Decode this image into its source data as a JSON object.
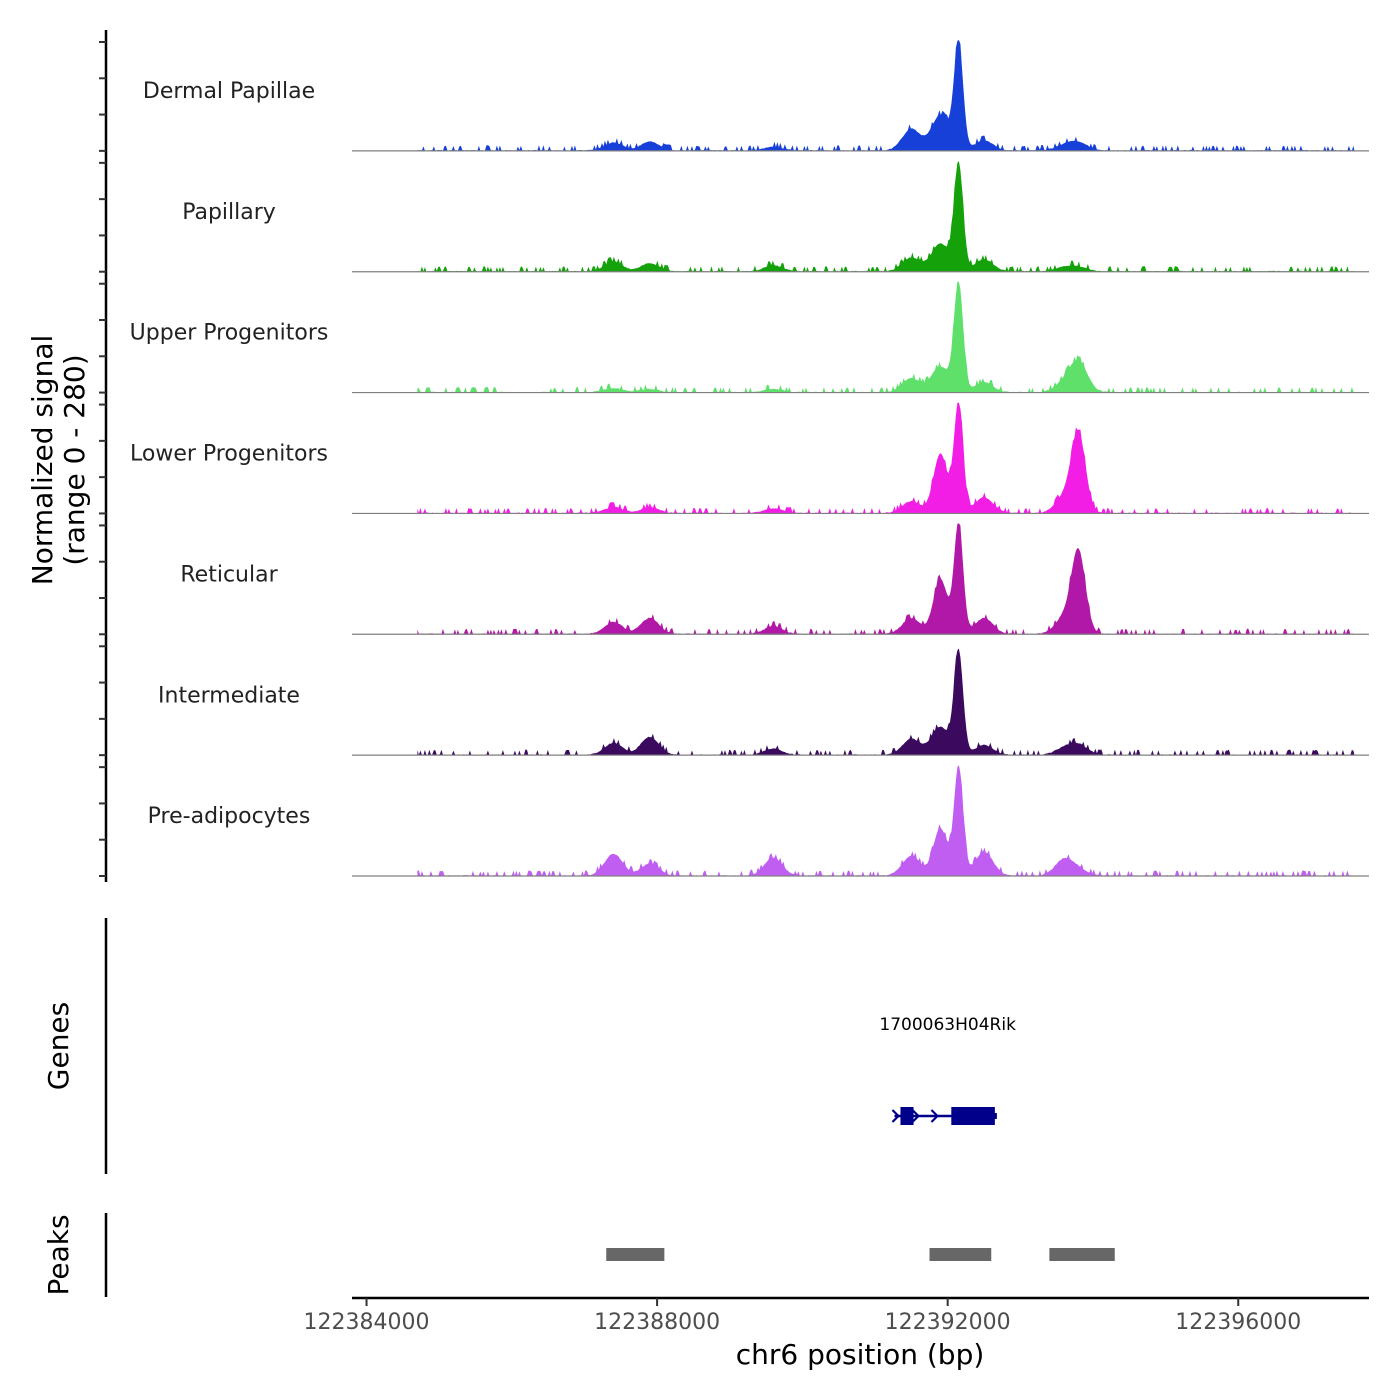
{
  "chart_data": {
    "type": "area",
    "title": "",
    "ylabel": "Normalized signal",
    "ylabel_range": "(range 0 - 280)",
    "ylim": [
      0,
      280
    ],
    "xlabel": "chr6 position (bp)",
    "xlim": [
      122383800,
      122397800
    ],
    "xticks": [
      122384000,
      122388000,
      122392000,
      122396000
    ],
    "xtick_labels": [
      "122384000",
      "122388000",
      "122392000",
      "122396000"
    ],
    "signal_start": 122384700,
    "signal_end": 122397600,
    "signal_peaks": [
      122387400,
      122387900,
      122389600,
      122391500,
      122391900,
      122392150,
      122392500,
      122393600,
      122393800
    ],
    "series": [
      {
        "name": "Dermal Papillae",
        "color": "#1740d8",
        "values": [
          20,
          22,
          10,
          55,
          90,
          270,
          25,
          12,
          20
        ]
      },
      {
        "name": "Papillary",
        "color": "#14a10a",
        "values": [
          25,
          20,
          15,
          35,
          70,
          270,
          30,
          10,
          10
        ]
      },
      {
        "name": "Upper Progenitors",
        "color": "#5ee06a",
        "values": [
          10,
          8,
          8,
          35,
          65,
          275,
          25,
          20,
          75
        ]
      },
      {
        "name": "Lower Progenitors",
        "color": "#f21ee6",
        "values": [
          15,
          15,
          12,
          30,
          150,
          280,
          40,
          40,
          200
        ]
      },
      {
        "name": "Reticular",
        "color": "#b218a8",
        "values": [
          30,
          40,
          20,
          40,
          140,
          280,
          40,
          40,
          205
        ]
      },
      {
        "name": "Intermediate",
        "color": "#3b0a5e",
        "values": [
          30,
          45,
          15,
          40,
          70,
          260,
          25,
          15,
          25
        ]
      },
      {
        "name": "Pre-adipocytes",
        "color": "#c05ef2",
        "values": [
          55,
          30,
          45,
          50,
          120,
          275,
          60,
          40,
          15
        ]
      }
    ],
    "genes_track_label": "Genes",
    "genes": [
      {
        "name": "1700063H04Rik",
        "start": 122391350,
        "end": 122392650,
        "strand": "+",
        "color": "#00008b",
        "exons": [
          [
            122391350,
            122391530
          ],
          [
            122392050,
            122392650
          ]
        ]
      }
    ],
    "peaks_track_label": "Peaks",
    "peaks": [
      [
        122387300,
        122388100
      ],
      [
        122391750,
        122392600
      ],
      [
        122393400,
        122394300
      ]
    ],
    "peak_color": "#676767"
  }
}
